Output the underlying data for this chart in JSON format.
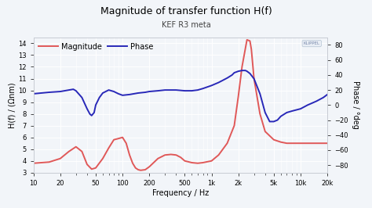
{
  "title": "Magnitude of transfer function H(f)",
  "subtitle": "KEF R3 meta",
  "xlabel": "Frequency / Hz",
  "ylabel_left": "H(f) / (Ωnm)",
  "ylabel_right": "Phase / °deg",
  "xlim": [
    10,
    20000
  ],
  "ylim_left": [
    3,
    14.5
  ],
  "ylim_right": [
    -90,
    90
  ],
  "yticks_left": [
    3,
    4,
    5,
    6,
    7,
    8,
    9,
    10,
    11,
    12,
    13,
    14
  ],
  "yticks_right": [
    -80,
    -60,
    -40,
    -20,
    0,
    20,
    40,
    60,
    80
  ],
  "xticks": [
    10,
    20,
    50,
    100,
    200,
    500,
    1000,
    2000,
    5000,
    10000,
    20000
  ],
  "xticklabels": [
    "10",
    "20",
    "50",
    "100",
    "200",
    "500",
    "1k",
    "2k",
    "5k",
    "10k",
    "20k"
  ],
  "magnitude_color": "#e05858",
  "phase_color": "#2828b8",
  "background_color": "#f2f5f9",
  "grid_color": "#ffffff",
  "legend_magnitude": "Magnitude",
  "legend_phase": "Phase",
  "magnitude_data": [
    [
      10,
      3.8
    ],
    [
      15,
      3.9
    ],
    [
      20,
      4.2
    ],
    [
      25,
      4.8
    ],
    [
      30,
      5.2
    ],
    [
      35,
      4.8
    ],
    [
      40,
      3.7
    ],
    [
      45,
      3.3
    ],
    [
      50,
      3.4
    ],
    [
      60,
      4.2
    ],
    [
      70,
      5.1
    ],
    [
      80,
      5.8
    ],
    [
      90,
      5.9
    ],
    [
      100,
      6.0
    ],
    [
      110,
      5.5
    ],
    [
      120,
      4.5
    ],
    [
      130,
      3.8
    ],
    [
      140,
      3.4
    ],
    [
      150,
      3.25
    ],
    [
      160,
      3.2
    ],
    [
      180,
      3.25
    ],
    [
      200,
      3.5
    ],
    [
      250,
      4.2
    ],
    [
      300,
      4.5
    ],
    [
      350,
      4.55
    ],
    [
      400,
      4.5
    ],
    [
      450,
      4.3
    ],
    [
      500,
      4.0
    ],
    [
      600,
      3.85
    ],
    [
      700,
      3.8
    ],
    [
      800,
      3.85
    ],
    [
      1000,
      4.0
    ],
    [
      1200,
      4.5
    ],
    [
      1500,
      5.5
    ],
    [
      1800,
      7.0
    ],
    [
      2000,
      9.5
    ],
    [
      2200,
      12.0
    ],
    [
      2500,
      14.3
    ],
    [
      2700,
      14.2
    ],
    [
      2800,
      13.5
    ],
    [
      3000,
      11.0
    ],
    [
      3500,
      8.0
    ],
    [
      4000,
      6.5
    ],
    [
      5000,
      5.8
    ],
    [
      6000,
      5.6
    ],
    [
      7000,
      5.5
    ],
    [
      10000,
      5.5
    ],
    [
      15000,
      5.5
    ],
    [
      20000,
      5.5
    ]
  ],
  "phase_data": [
    [
      10,
      15
    ],
    [
      15,
      17
    ],
    [
      20,
      18
    ],
    [
      25,
      20
    ],
    [
      28,
      21
    ],
    [
      30,
      19
    ],
    [
      35,
      10
    ],
    [
      40,
      -5
    ],
    [
      43,
      -12
    ],
    [
      45,
      -14
    ],
    [
      48,
      -10
    ],
    [
      50,
      0
    ],
    [
      55,
      10
    ],
    [
      60,
      16
    ],
    [
      70,
      20
    ],
    [
      80,
      18
    ],
    [
      90,
      15
    ],
    [
      100,
      13
    ],
    [
      120,
      14
    ],
    [
      150,
      16
    ],
    [
      180,
      17
    ],
    [
      200,
      18
    ],
    [
      250,
      19
    ],
    [
      300,
      20
    ],
    [
      400,
      20
    ],
    [
      500,
      19
    ],
    [
      600,
      19
    ],
    [
      700,
      20
    ],
    [
      800,
      22
    ],
    [
      1000,
      26
    ],
    [
      1200,
      30
    ],
    [
      1500,
      36
    ],
    [
      1700,
      40
    ],
    [
      1800,
      43
    ],
    [
      2000,
      45
    ],
    [
      2200,
      46
    ],
    [
      2400,
      46
    ],
    [
      2500,
      45
    ],
    [
      2700,
      42
    ],
    [
      3000,
      35
    ],
    [
      3500,
      15
    ],
    [
      4000,
      -10
    ],
    [
      4500,
      -22
    ],
    [
      5000,
      -22
    ],
    [
      5500,
      -20
    ],
    [
      6000,
      -15
    ],
    [
      7000,
      -10
    ],
    [
      8000,
      -8
    ],
    [
      10000,
      -5
    ],
    [
      12000,
      0
    ],
    [
      15000,
      5
    ],
    [
      18000,
      10
    ],
    [
      20000,
      14
    ]
  ],
  "title_fontsize": 9,
  "subtitle_fontsize": 7,
  "label_fontsize": 7,
  "tick_fontsize": 6,
  "legend_fontsize": 7,
  "linewidth": 1.4
}
